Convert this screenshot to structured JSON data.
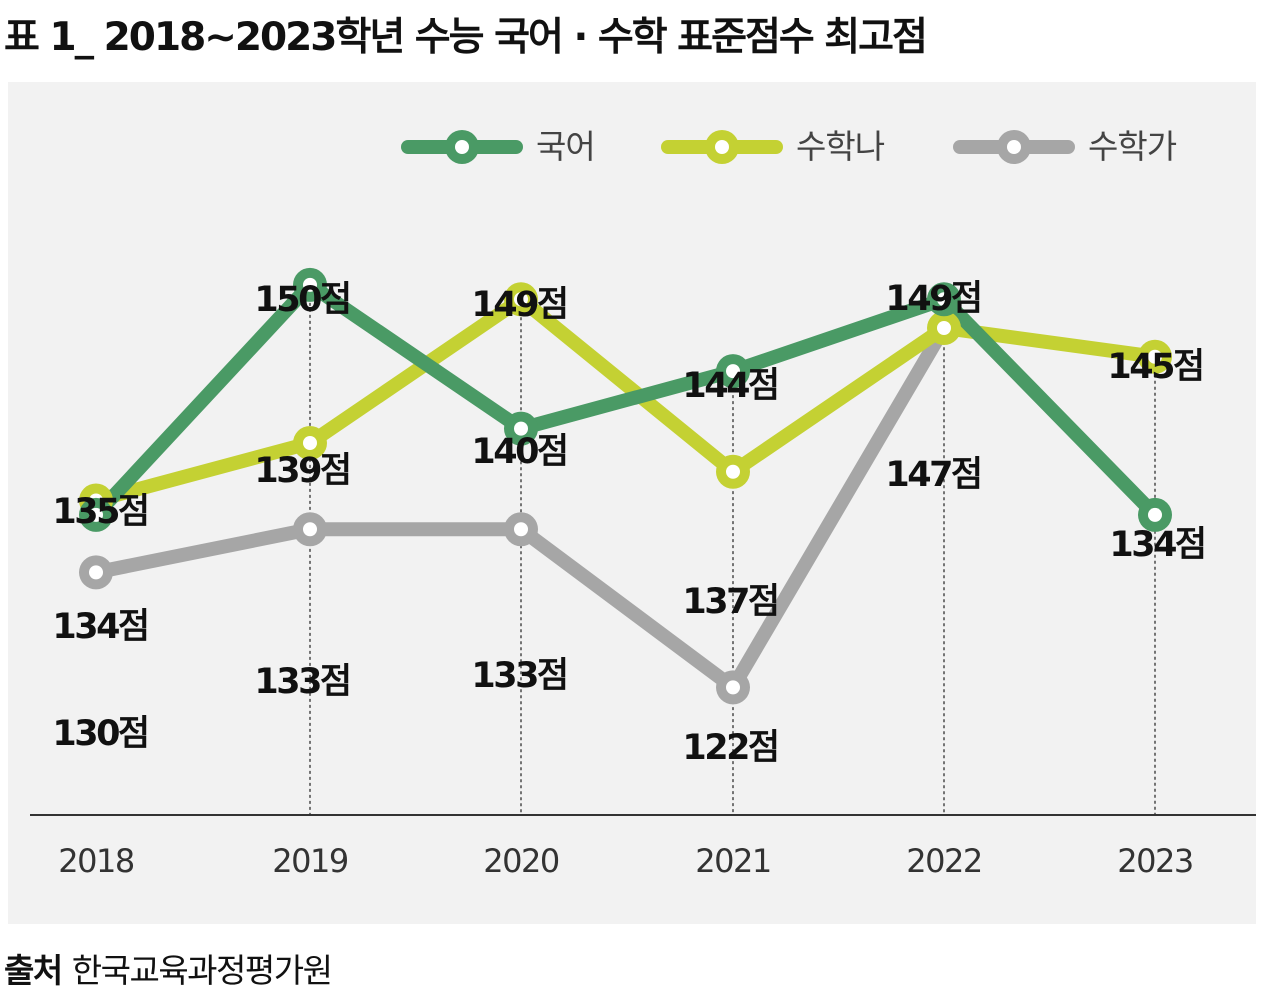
{
  "title": "표 1_ 2018∼2023학년 수능 국어 · 수학 표준점수 최고점",
  "source": {
    "label": "출처",
    "value": "한국교육과정평가원"
  },
  "unit_suffix": "점",
  "chart_data": {
    "type": "line",
    "title": "표 1_ 2018∼2023학년 수능 국어 · 수학 표준점수 최고점",
    "x": [
      "2018",
      "2019",
      "2020",
      "2021",
      "2022",
      "2023"
    ],
    "legend_position": "top-right",
    "grid": false,
    "ylim": [
      115,
      155
    ],
    "series": [
      {
        "name": "국어",
        "color": "#4a9a65",
        "values": [
          134,
          150,
          140,
          144,
          149,
          134
        ]
      },
      {
        "name": "수학나",
        "color": "#c4d133",
        "values": [
          135,
          139,
          149,
          137,
          147,
          145
        ]
      },
      {
        "name": "수학가",
        "color": "#a6a6a6",
        "values": [
          130,
          133,
          133,
          122,
          null,
          null
        ]
      }
    ],
    "data_labels": [
      {
        "text": "135점"
      },
      {
        "text": "134점"
      },
      {
        "text": "130점"
      },
      {
        "text": "150점"
      },
      {
        "text": "139점"
      },
      {
        "text": "133점"
      },
      {
        "text": "149점"
      },
      {
        "text": "140점"
      },
      {
        "text": "133점"
      },
      {
        "text": "144점"
      },
      {
        "text": "137점"
      },
      {
        "text": "122점"
      },
      {
        "text": "149점"
      },
      {
        "text": "147점"
      },
      {
        "text": "145점"
      },
      {
        "text": "134점"
      }
    ]
  }
}
